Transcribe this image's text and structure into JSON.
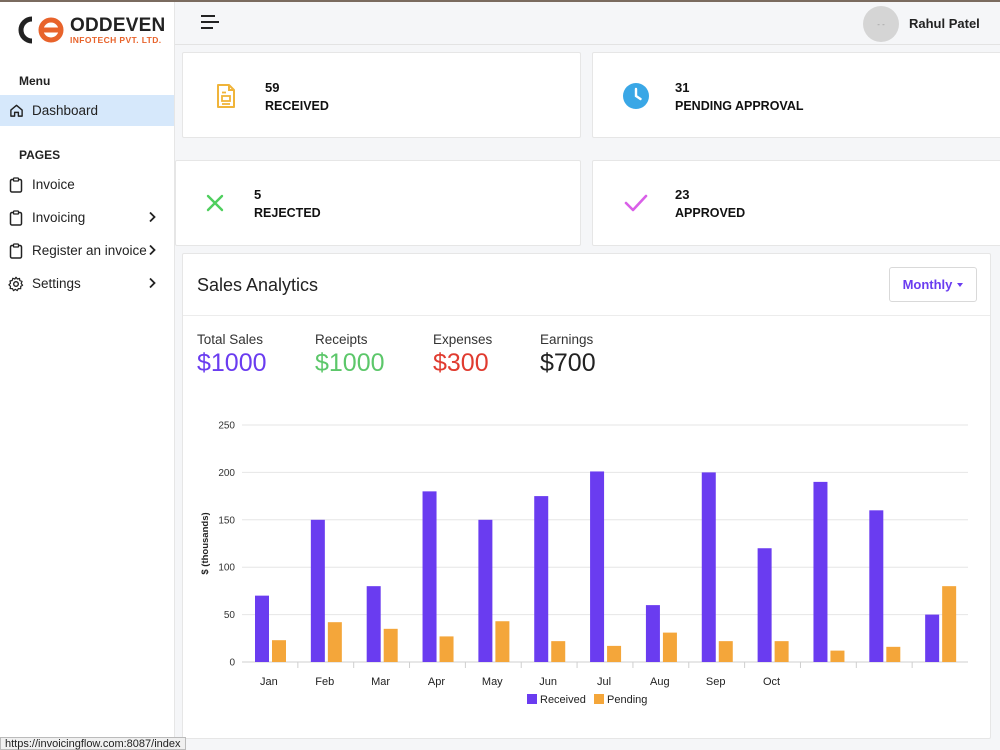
{
  "brand": {
    "name": "ODDEVEN",
    "subtitle": "INFOTECH PVT. LTD."
  },
  "sidebar": {
    "menu_heading": "Menu",
    "pages_heading": "PAGES",
    "items": [
      {
        "label": "Dashboard",
        "icon": "home-icon",
        "active": true
      },
      {
        "label": "Invoice",
        "icon": "clipboard-icon"
      },
      {
        "label": "Invoicing",
        "icon": "clipboard-icon",
        "has_submenu": true
      },
      {
        "label": "Register an invoice",
        "icon": "clipboard-icon",
        "has_submenu": true
      },
      {
        "label": "Settings",
        "icon": "gear-icon",
        "has_submenu": true
      }
    ]
  },
  "header": {
    "avatar_text": "- -",
    "user_name": "Rahul Patel"
  },
  "stats": [
    {
      "value": "59",
      "label": "RECEIVED",
      "icon": "document-icon",
      "bg": "#fce8c0",
      "color": "#f0b43a"
    },
    {
      "value": "31",
      "label": "PENDING APPROVAL",
      "icon": "clock-icon",
      "bg": "#d5eefb",
      "color": "#3aa7e6"
    },
    {
      "value": "5",
      "label": "REJECTED",
      "icon": "x-icon",
      "bg": "#d2f6d0",
      "color": "#4fcf5e"
    },
    {
      "value": "23",
      "label": "APPROVED",
      "icon": "check-icon",
      "bg": "#f0d1f7",
      "color": "#d95fe8"
    }
  ],
  "sales": {
    "title": "Sales Analytics",
    "period_button": "Monthly",
    "metrics": [
      {
        "label": "Total Sales",
        "value": "$1000",
        "color": "#6a3cf0"
      },
      {
        "label": "Receipts",
        "value": "$1000",
        "color": "#5cc76a"
      },
      {
        "label": "Expenses",
        "value": "$300",
        "color": "#e03b2f"
      },
      {
        "label": "Earnings",
        "value": "$700",
        "color": "#222222"
      }
    ]
  },
  "chart_data": {
    "type": "bar",
    "categories": [
      "Jan",
      "Feb",
      "Mar",
      "Apr",
      "May",
      "Jun",
      "Jul",
      "Aug",
      "Sep",
      "Oct",
      "",
      "",
      ""
    ],
    "series": [
      {
        "name": "Received",
        "color": "#6a3cf0",
        "values": [
          70,
          150,
          80,
          180,
          150,
          175,
          201,
          60,
          200,
          120,
          190,
          160,
          50
        ]
      },
      {
        "name": "Pending",
        "color": "#f4a63a",
        "values": [
          23,
          42,
          35,
          27,
          43,
          22,
          17,
          31,
          22,
          22,
          12,
          16,
          80
        ]
      }
    ],
    "ylabel": "$ (thousands)",
    "ylim": [
      0,
      250
    ],
    "yticks": [
      0,
      50,
      100,
      150,
      200,
      250
    ],
    "legend": "bottom-center"
  },
  "status_bar": {
    "url": "https://invoicingflow.com:8087/index"
  }
}
